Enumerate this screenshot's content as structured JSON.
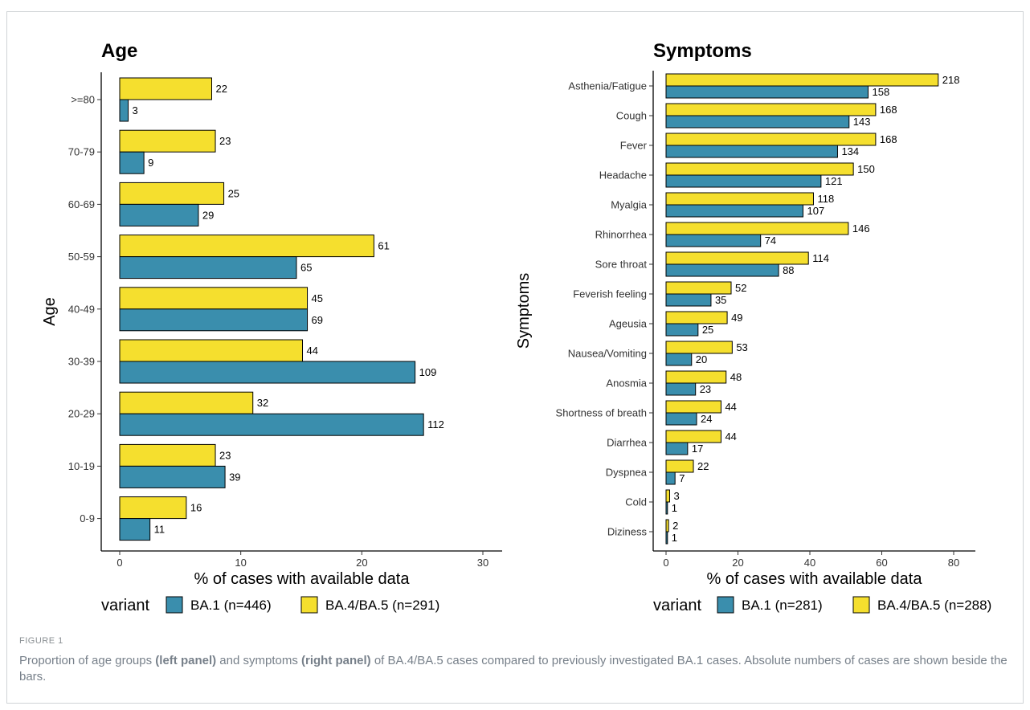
{
  "figure": {
    "label": "FIGURE 1",
    "caption": {
      "p1": "Proportion of age groups ",
      "b1": "(left panel)",
      "p2": " and symptoms ",
      "b2": "(right panel)",
      "p3": " of BA.4/BA.5 cases compared to previously investigated BA.1 cases. Absolute numbers of cases are shown beside the bars."
    }
  },
  "colors": {
    "ba1": "#3a8ead",
    "ba45": "#f5df2e",
    "axis": "#000000"
  },
  "chart_data": [
    {
      "type": "bar",
      "orientation": "horizontal",
      "title": "Age",
      "xlabel": "% of cases with available data",
      "ylabel": "Age",
      "xlim": [
        0,
        30
      ],
      "xticks": [
        "0",
        "10",
        "20",
        "30"
      ],
      "grid": false,
      "legend": {
        "title": "variant",
        "position": "bottom",
        "entries": [
          "BA.1 (n=446)",
          "BA.4/BA.5 (n=291)"
        ]
      },
      "categories": [
        ">=80",
        "70-79",
        "60-69",
        "50-59",
        "40-49",
        "30-39",
        "20-29",
        "10-19",
        "0-9"
      ],
      "series": [
        {
          "name": "BA.4/BA.5 (n=291)",
          "values": [
            7.6,
            7.9,
            8.6,
            21.0,
            15.5,
            15.1,
            11.0,
            7.9,
            5.5
          ],
          "labels": [
            "22",
            "23",
            "25",
            "61",
            "45",
            "44",
            "32",
            "23",
            "16"
          ]
        },
        {
          "name": "BA.1 (n=446)",
          "values": [
            0.7,
            2.0,
            6.5,
            14.6,
            15.5,
            24.4,
            25.1,
            8.7,
            2.5
          ],
          "labels": [
            "3",
            "9",
            "29",
            "65",
            "69",
            "109",
            "112",
            "39",
            "11"
          ]
        }
      ]
    },
    {
      "type": "bar",
      "orientation": "horizontal",
      "title": "Symptoms",
      "xlabel": "% of cases with available data",
      "ylabel": "Symptoms",
      "xlim": [
        0,
        80
      ],
      "xticks": [
        "0",
        "20",
        "40",
        "60",
        "80"
      ],
      "grid": false,
      "legend": {
        "title": "variant",
        "position": "bottom",
        "entries": [
          "BA.1 (n=281)",
          "BA.4/BA.5 (n=288)"
        ]
      },
      "categories": [
        "Asthenia/Fatigue",
        "Cough",
        "Fever",
        "Headache",
        "Myalgia",
        "Rhinorrhea",
        "Sore throat",
        "Feverish feeling",
        "Ageusia",
        "Nausea/Vomiting",
        "Anosmia",
        "Shortness of breath",
        "Diarrhea",
        "Dyspnea",
        "Cold",
        "Diziness"
      ],
      "series": [
        {
          "name": "BA.4/BA.5 (n=288)",
          "values": [
            75.7,
            58.3,
            58.3,
            52.1,
            41.0,
            50.7,
            39.6,
            18.1,
            17.0,
            18.4,
            16.7,
            15.3,
            15.3,
            7.6,
            1.0,
            0.7
          ],
          "labels": [
            "218",
            "168",
            "168",
            "150",
            "118",
            "146",
            "114",
            "52",
            "49",
            "53",
            "48",
            "44",
            "44",
            "22",
            "3",
            "2"
          ]
        },
        {
          "name": "BA.1 (n=281)",
          "values": [
            56.2,
            50.9,
            47.7,
            43.1,
            38.1,
            26.3,
            31.3,
            12.5,
            8.9,
            7.1,
            8.2,
            8.5,
            6.0,
            2.5,
            0.4,
            0.4
          ],
          "labels": [
            "158",
            "143",
            "134",
            "121",
            "107",
            "74",
            "88",
            "35",
            "25",
            "20",
            "23",
            "24",
            "17",
            "7",
            "1",
            "1"
          ]
        }
      ]
    }
  ]
}
